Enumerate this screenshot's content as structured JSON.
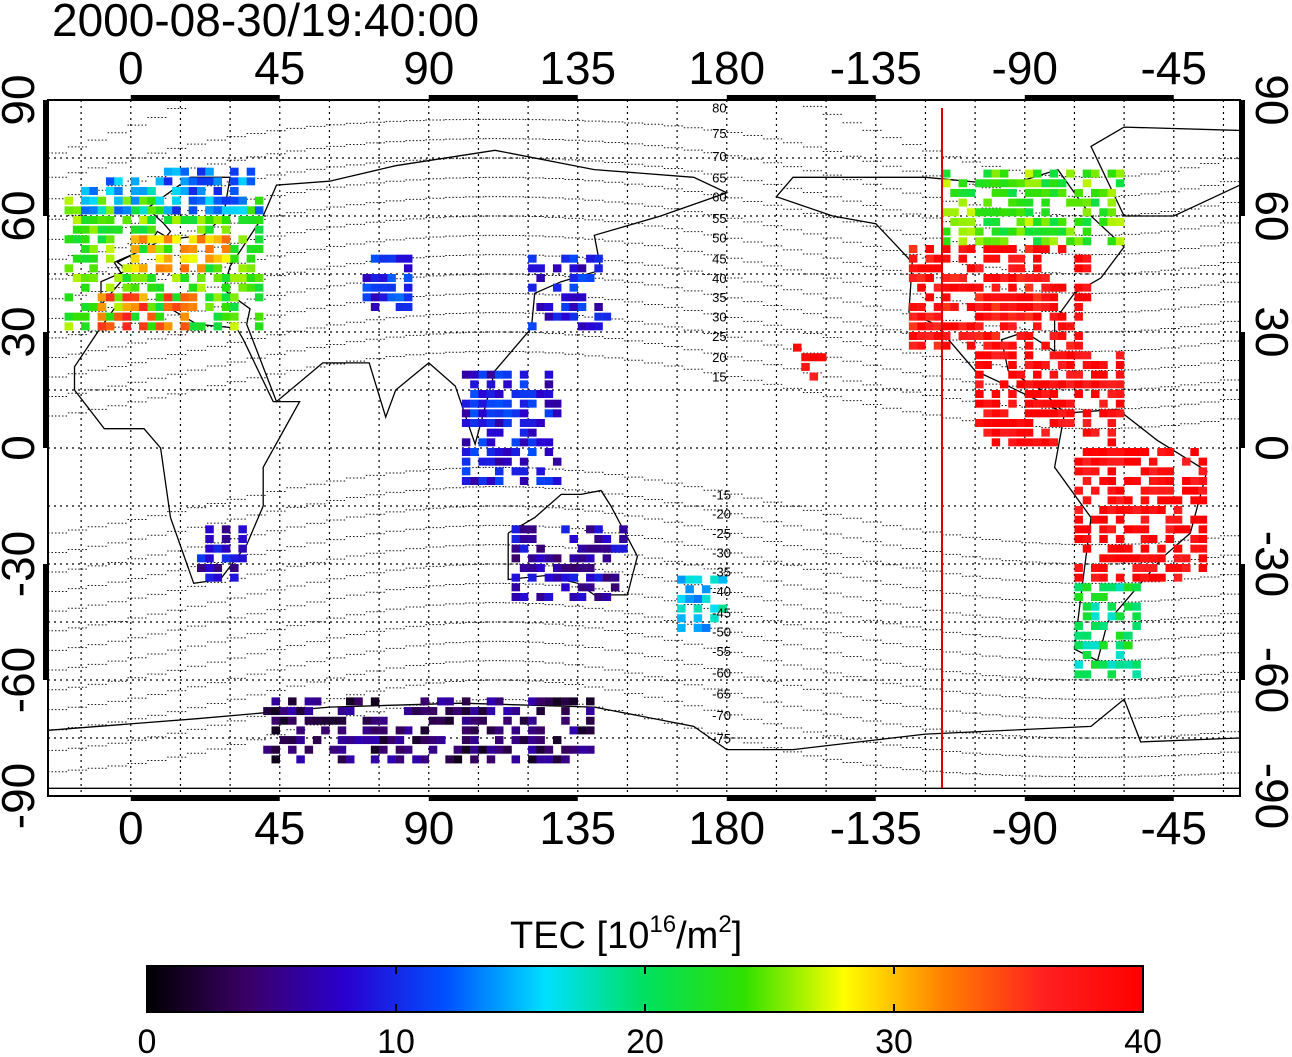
{
  "title": "2000-08-30/19:40:00",
  "map": {
    "projection": "equirectangular",
    "lon_range": [
      -25,
      335
    ],
    "lat_range": [
      -90,
      90
    ],
    "lon_ticks": [
      0,
      45,
      90,
      135,
      180,
      225,
      270,
      315
    ],
    "lon_tick_labels": [
      "0",
      "45",
      "90",
      "135",
      "180",
      "-135",
      "-90",
      "-45"
    ],
    "lat_ticks": [
      90,
      60,
      30,
      0,
      -30,
      -60,
      -90
    ],
    "lat_tick_labels": [
      "90",
      "60",
      "30",
      "0",
      "-30",
      "-60",
      "-90"
    ],
    "grid": true,
    "grid_step_deg": 15,
    "terminator_longitude": -115,
    "terminator_color": "#e00000",
    "contour_labels": [
      "80",
      "75",
      "70",
      "65",
      "60",
      "55",
      "50",
      "45",
      "40",
      "35",
      "30",
      "25",
      "20",
      "15",
      "-15",
      "-20",
      "-25",
      "-30",
      "-35",
      "-40",
      "-45",
      "-50",
      "-55",
      "-60",
      "-65",
      "-70",
      "-75"
    ]
  },
  "colorbar": {
    "title_prefix": "TEC  [10",
    "title_exp": "16",
    "title_mid": "/m",
    "title_exp2": "2",
    "title_suffix": "]",
    "min": 0,
    "max": 40,
    "tick_labels": [
      "0",
      "10",
      "20",
      "30",
      "40"
    ],
    "stops": [
      "#000000",
      "#3a0066",
      "#2a00d0",
      "#0050ff",
      "#00e0ff",
      "#00e060",
      "#30e000",
      "#ffff00",
      "#ff8000",
      "#ff2020",
      "#ff0000"
    ]
  },
  "chart_data": {
    "type": "heatmap",
    "quantity": "TEC",
    "regions": [
      {
        "lon": [
          -20,
          40
        ],
        "lat": [
          30,
          65
        ],
        "tec": 24
      },
      {
        "lon": [
          -10,
          20
        ],
        "lat": [
          30,
          40
        ],
        "tec": 33
      },
      {
        "lon": [
          0,
          30
        ],
        "lat": [
          45,
          55
        ],
        "tec": 30
      },
      {
        "lon": [
          -15,
          10
        ],
        "lat": [
          60,
          68
        ],
        "tec": 15
      },
      {
        "lon": [
          10,
          40
        ],
        "lat": [
          60,
          72
        ],
        "tec": 13
      },
      {
        "lon": [
          20,
          35
        ],
        "lat": [
          -35,
          -22
        ],
        "tec": 8
      },
      {
        "lon": [
          70,
          85
        ],
        "lat": [
          35,
          50
        ],
        "tec": 10
      },
      {
        "lon": [
          120,
          145
        ],
        "lat": [
          30,
          50
        ],
        "tec": 9
      },
      {
        "lon": [
          100,
          130
        ],
        "lat": [
          -10,
          20
        ],
        "tec": 9
      },
      {
        "lon": [
          115,
          150
        ],
        "lat": [
          -40,
          -20
        ],
        "tec": 7
      },
      {
        "lon": [
          165,
          180
        ],
        "lat": [
          -48,
          -35
        ],
        "tec": 16
      },
      {
        "lon": [
          40,
          140
        ],
        "lat": [
          -82,
          -65
        ],
        "tec": 4
      },
      {
        "lon": [
          235,
          290
        ],
        "lat": [
          25,
          52
        ],
        "tec": 38
      },
      {
        "lon": [
          245,
          300
        ],
        "lat": [
          52,
          72
        ],
        "tec": 24
      },
      {
        "lon": [
          255,
          300
        ],
        "lat": [
          0,
          25
        ],
        "tec": 39
      },
      {
        "lon": [
          285,
          325
        ],
        "lat": [
          -35,
          0
        ],
        "tec": 39
      },
      {
        "lon": [
          285,
          305
        ],
        "lat": [
          -60,
          -35
        ],
        "tec": 20
      },
      {
        "lon": [
          200,
          210
        ],
        "lat": [
          17,
          25
        ],
        "tec": 39
      }
    ]
  }
}
